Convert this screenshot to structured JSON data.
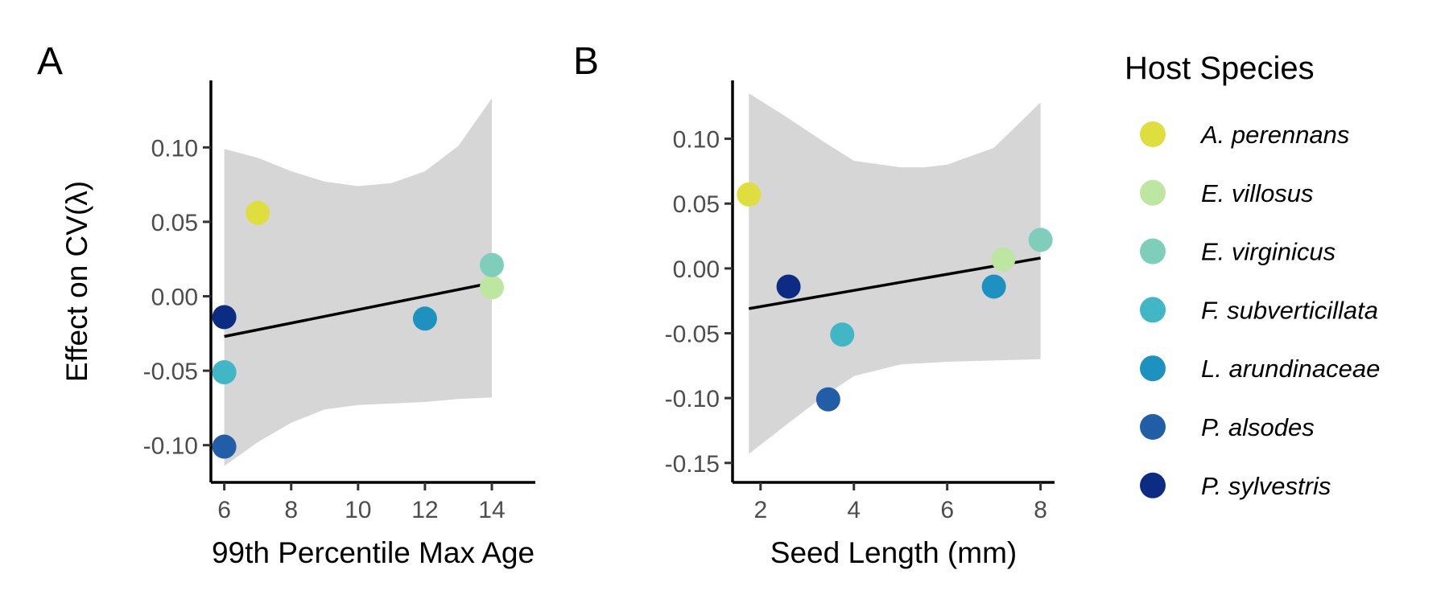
{
  "chart_data": [
    {
      "type": "scatter",
      "panel_label": "A",
      "xlabel": "99th Percentile Max Age",
      "ylabel": "Effect on CV(λ)",
      "xlim": [
        5.6,
        15.3
      ],
      "ylim": [
        -0.125,
        0.145
      ],
      "xticks": [
        6,
        8,
        10,
        12,
        14
      ],
      "xtick_labels": [
        "6",
        "8",
        "10",
        "12",
        "14"
      ],
      "yticks": [
        -0.1,
        -0.05,
        0.0,
        0.05,
        0.1
      ],
      "ytick_labels": [
        "-0.10",
        "-0.05",
        "0.00",
        "0.05",
        "0.10"
      ],
      "points": [
        {
          "species": "A. perennans",
          "x": 7,
          "y": 0.056
        },
        {
          "species": "E. villosus",
          "x": 14,
          "y": 0.006
        },
        {
          "species": "E. virginicus",
          "x": 14,
          "y": 0.021
        },
        {
          "species": "F. subverticillata",
          "x": 6,
          "y": -0.051
        },
        {
          "species": "L. arundinaceae",
          "x": 12,
          "y": -0.015
        },
        {
          "species": "P. alsodes",
          "x": 6,
          "y": -0.101
        },
        {
          "species": "P. sylvestris",
          "x": 6,
          "y": -0.014
        }
      ],
      "fit_line": {
        "x": [
          6,
          14
        ],
        "y": [
          -0.027,
          0.009
        ]
      },
      "confidence_band": {
        "x": [
          6,
          7,
          8,
          9,
          10,
          11,
          12,
          13,
          14
        ],
        "upper": [
          0.099,
          0.093,
          0.084,
          0.077,
          0.074,
          0.076,
          0.084,
          0.101,
          0.133
        ],
        "lower": [
          -0.114,
          -0.098,
          -0.085,
          -0.076,
          -0.073,
          -0.072,
          -0.071,
          -0.069,
          -0.068
        ]
      },
      "grid": false
    },
    {
      "type": "scatter",
      "panel_label": "B",
      "xlabel": "Seed Length (mm)",
      "ylabel": "",
      "xlim": [
        1.4,
        8.3
      ],
      "ylim": [
        -0.165,
        0.145
      ],
      "xticks": [
        2,
        4,
        6,
        8
      ],
      "xtick_labels": [
        "2",
        "4",
        "6",
        "8"
      ],
      "yticks": [
        -0.15,
        -0.1,
        -0.05,
        0.0,
        0.05,
        0.1
      ],
      "ytick_labels": [
        "-0.15",
        "-0.10",
        "-0.05",
        "0.00",
        "0.05",
        "0.10"
      ],
      "points": [
        {
          "species": "A. perennans",
          "x": 1.75,
          "y": 0.057
        },
        {
          "species": "E. villosus",
          "x": 7.2,
          "y": 0.007
        },
        {
          "species": "E. virginicus",
          "x": 8.0,
          "y": 0.022
        },
        {
          "species": "F. subverticillata",
          "x": 3.75,
          "y": -0.051
        },
        {
          "species": "L. arundinaceae",
          "x": 7.0,
          "y": -0.014
        },
        {
          "species": "P. alsodes",
          "x": 3.45,
          "y": -0.101
        },
        {
          "species": "P. sylvestris",
          "x": 2.6,
          "y": -0.014
        }
      ],
      "fit_line": {
        "x": [
          1.75,
          8.0
        ],
        "y": [
          -0.031,
          0.008
        ]
      },
      "confidence_band": {
        "x": [
          1.75,
          2.5,
          3.3,
          4.0,
          5.0,
          5.5,
          6.0,
          7.0,
          8.0
        ],
        "upper": [
          0.135,
          0.118,
          0.099,
          0.083,
          0.078,
          0.078,
          0.08,
          0.093,
          0.128
        ],
        "lower": [
          -0.143,
          -0.122,
          -0.1,
          -0.083,
          -0.074,
          -0.073,
          -0.072,
          -0.071,
          -0.07
        ]
      },
      "grid": false
    }
  ],
  "legend": {
    "title": "Host Species",
    "placement": "right",
    "items": [
      {
        "label": "A. perennans",
        "color": "#dede3f"
      },
      {
        "label": "E. villosus",
        "color": "#bde6a0"
      },
      {
        "label": "E. virginicus",
        "color": "#7fcdbb"
      },
      {
        "label": "F. subverticillata",
        "color": "#41b6c4"
      },
      {
        "label": "L. arundinaceae",
        "color": "#1d91c0"
      },
      {
        "label": "P. alsodes",
        "color": "#225ea8"
      },
      {
        "label": "P. sylvestris",
        "color": "#0c2c84"
      }
    ]
  },
  "styles": {
    "band_color": "#d6d6d6",
    "line_color": "#000000"
  }
}
